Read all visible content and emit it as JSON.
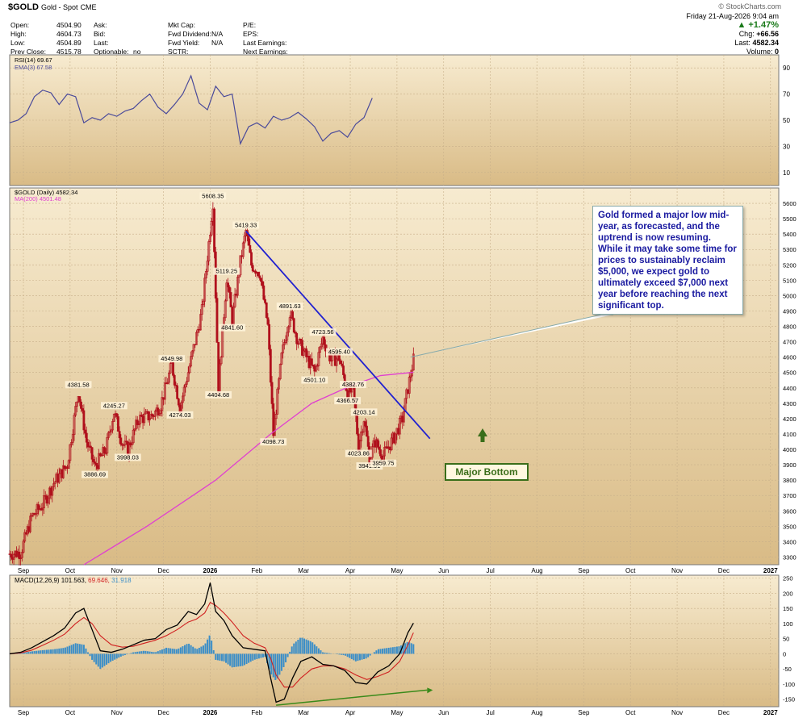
{
  "header": {
    "symbol": "$GOLD",
    "name": "Gold - Spot",
    "exchange": "CME",
    "source": "© StockCharts.com",
    "date_line": "Friday  21-Aug-2026  9:04 am",
    "change_pct": "▲ +1.47%",
    "chg_label": "Chg:",
    "chg_value": "+66.56",
    "last_label": "Last:",
    "last_value": "4582.34",
    "volume_label": "Volume:",
    "volume_value": "0",
    "col1": [
      [
        "Open:",
        "4504.90"
      ],
      [
        "High:",
        "4604.73"
      ],
      [
        "Low:",
        "4504.89"
      ],
      [
        "Prev Close:",
        "4515.78"
      ]
    ],
    "col2": [
      [
        "Ask:",
        ""
      ],
      [
        "Bid:",
        ""
      ],
      [
        "Last:",
        ""
      ],
      [
        "Optionable:",
        "no"
      ]
    ],
    "col3": [
      [
        "Mkt Cap:",
        ""
      ],
      [
        "Fwd Dividend:",
        "N/A"
      ],
      [
        "Fwd Yield:",
        "N/A"
      ],
      [
        "SCTR:",
        ""
      ]
    ],
    "col4": [
      "P/E:",
      "EPS:",
      "Last Earnings:",
      "Next Earnings:"
    ]
  },
  "colors": {
    "bg_top": "#f7e8c8",
    "bg_bottom": "#d9bb86",
    "rsi_line": "#4a4a9a",
    "candle": "#b0101c",
    "ma": "#e040d0",
    "trendline": "#2020d0",
    "macd": "#000000",
    "signal": "#d02020",
    "histogram": "#3b8ec8",
    "divergence": "#3a8a1a",
    "callout_text": "#1a1aa0",
    "major_bottom": "#3a6e1a"
  },
  "chart_data": [
    {
      "type": "line",
      "panel": "RSI",
      "legend": [
        "RSI(14) 69.67",
        "EMA(3) 67.58"
      ],
      "ylim": [
        0,
        100
      ],
      "y_ticks": [
        10,
        30,
        50,
        70,
        90
      ],
      "x": [
        0,
        6,
        12,
        18,
        24,
        30,
        36,
        42,
        48,
        54,
        60,
        66,
        72,
        78,
        84,
        90,
        96,
        102,
        108,
        114,
        120,
        126,
        132,
        138,
        144,
        150,
        156,
        162,
        168,
        174,
        180,
        186,
        192,
        198,
        204,
        210,
        216,
        222,
        228,
        234,
        240,
        246,
        252,
        258,
        264
      ],
      "rsi": [
        48,
        50,
        55,
        68,
        73,
        71,
        62,
        70,
        68,
        48,
        52,
        50,
        55,
        53,
        57,
        59,
        65,
        70,
        60,
        55,
        62,
        70,
        84,
        63,
        58,
        76,
        68,
        70,
        32,
        45,
        48,
        44,
        53,
        50,
        52,
        56,
        51,
        45,
        34,
        40,
        42,
        37,
        47,
        52,
        67
      ]
    },
    {
      "type": "candlestick",
      "panel": "Price",
      "legend": [
        "$GOLD (Daily) 4582.34",
        "MA(200) 4501.48"
      ],
      "ylim": [
        3250,
        5700
      ],
      "y_ticks": [
        3300,
        3400,
        3500,
        3600,
        3700,
        3800,
        3900,
        4000,
        4100,
        4200,
        4300,
        4400,
        4500,
        4600,
        4700,
        4800,
        4900,
        5000,
        5100,
        5200,
        5300,
        5400,
        5500,
        5600
      ],
      "x_ticks": [
        "Sep",
        "Oct",
        "Nov",
        "Dec",
        "2026",
        "Feb",
        "Mar",
        "Apr",
        "May",
        "Jun",
        "Jul",
        "Aug",
        "Sep",
        "Oct",
        "Nov",
        "Dec",
        "2027"
      ],
      "close_path": [
        [
          0,
          3320
        ],
        [
          8,
          3330
        ],
        [
          16,
          3560
        ],
        [
          24,
          3640
        ],
        [
          32,
          3780
        ],
        [
          42,
          3900
        ],
        [
          50,
          4381.58
        ],
        [
          56,
          4050
        ],
        [
          62,
          3886.69
        ],
        [
          70,
          4000
        ],
        [
          76,
          4245.27
        ],
        [
          82,
          4040
        ],
        [
          86,
          3998.03
        ],
        [
          94,
          4200
        ],
        [
          104,
          4220
        ],
        [
          110,
          4290
        ],
        [
          118,
          4549.98
        ],
        [
          124,
          4274.03
        ],
        [
          132,
          4580
        ],
        [
          140,
          4900
        ],
        [
          148,
          5608.35
        ],
        [
          152,
          4404.68
        ],
        [
          158,
          5119.25
        ],
        [
          162,
          4841.6
        ],
        [
          168,
          5220
        ],
        [
          172,
          5419.33
        ],
        [
          176,
          5200
        ],
        [
          182,
          5150
        ],
        [
          188,
          4800
        ],
        [
          192,
          4098.73
        ],
        [
          198,
          4600
        ],
        [
          204,
          4891.63
        ],
        [
          210,
          4700
        ],
        [
          216,
          4600
        ],
        [
          222,
          4501.1
        ],
        [
          228,
          4723.56
        ],
        [
          234,
          4580
        ],
        [
          240,
          4595.4
        ],
        [
          246,
          4366.57
        ],
        [
          250,
          4382.76
        ],
        [
          254,
          4023.86
        ],
        [
          258,
          4203.14
        ],
        [
          262,
          3941.91
        ],
        [
          266,
          4050
        ],
        [
          272,
          3959.75
        ],
        [
          280,
          4080
        ],
        [
          286,
          4200
        ],
        [
          290,
          4400
        ],
        [
          294,
          4582.34
        ]
      ],
      "labels": [
        {
          "label": "4381.58",
          "value": 4381.58
        },
        {
          "label": "3886.69",
          "value": 3886.69
        },
        {
          "label": "4245.27",
          "value": 4245.27
        },
        {
          "label": "3998.03",
          "value": 3998.03
        },
        {
          "label": "4549.98",
          "value": 4549.98
        },
        {
          "label": "4274.03",
          "value": 4274.03
        },
        {
          "label": "5608.35",
          "value": 5608.35
        },
        {
          "label": "4404.68",
          "value": 4404.68
        },
        {
          "label": "5119.25",
          "value": 5119.25
        },
        {
          "label": "4841.60",
          "value": 4841.6
        },
        {
          "label": "5419.33",
          "value": 5419.33
        },
        {
          "label": "4098.73",
          "value": 4098.73
        },
        {
          "label": "4891.63",
          "value": 4891.63
        },
        {
          "label": "4501.10",
          "value": 4501.1
        },
        {
          "label": "4723.56",
          "value": 4723.56
        },
        {
          "label": "4595.40",
          "value": 4595.4
        },
        {
          "label": "4366.57",
          "value": 4366.57
        },
        {
          "label": "4382.76",
          "value": 4382.76
        },
        {
          "label": "4023.86",
          "value": 4023.86
        },
        {
          "label": "4203.14",
          "value": 4203.14
        },
        {
          "label": "3941.91",
          "value": 3941.91
        },
        {
          "label": "3959.75",
          "value": 3959.75
        }
      ],
      "ma200": [
        [
          54,
          3250
        ],
        [
          100,
          3500
        ],
        [
          150,
          3800
        ],
        [
          190,
          4100
        ],
        [
          220,
          4300
        ],
        [
          250,
          4420
        ],
        [
          270,
          4480
        ],
        [
          294,
          4501.48
        ]
      ],
      "trendline": [
        [
          172,
          5419.33
        ],
        [
          306,
          4070
        ]
      ],
      "annotations": [
        "Gold formed a major low mid-year, as forecasted, and the uptrend is now resuming. While it may take some time for prices to sustainably reclaim $5,000, we expect gold to ultimately exceed $7,000 next year before reaching the next significant top.",
        "Major Bottom"
      ]
    },
    {
      "type": "line",
      "panel": "MACD",
      "legend": [
        "MACD(12,26,9)",
        "101.563",
        "69.646",
        "31.918"
      ],
      "ylim": [
        -175,
        260
      ],
      "y_ticks": [
        -150,
        -100,
        -50,
        0,
        50,
        100,
        150,
        200,
        250
      ],
      "x": [
        0,
        8,
        16,
        24,
        32,
        40,
        48,
        54,
        60,
        66,
        74,
        82,
        90,
        98,
        106,
        114,
        122,
        130,
        136,
        142,
        146,
        150,
        156,
        162,
        170,
        178,
        186,
        190,
        194,
        200,
        206,
        212,
        220,
        228,
        236,
        244,
        252,
        260,
        268,
        276,
        284,
        290,
        294
      ],
      "macd": [
        0,
        5,
        20,
        40,
        60,
        85,
        135,
        150,
        80,
        10,
        5,
        15,
        30,
        45,
        50,
        80,
        95,
        140,
        130,
        165,
        235,
        140,
        110,
        60,
        20,
        15,
        10,
        -80,
        -160,
        -150,
        -80,
        -25,
        -10,
        -35,
        -40,
        -55,
        -95,
        -100,
        -60,
        -40,
        0,
        70,
        101.563
      ],
      "signal": [
        0,
        3,
        12,
        28,
        45,
        65,
        100,
        120,
        100,
        60,
        30,
        22,
        25,
        35,
        45,
        60,
        80,
        105,
        115,
        135,
        170,
        160,
        135,
        105,
        60,
        35,
        20,
        -15,
        -70,
        -110,
        -110,
        -80,
        -50,
        -40,
        -40,
        -50,
        -70,
        -85,
        -75,
        -60,
        -25,
        30,
        69.646
      ]
    }
  ]
}
